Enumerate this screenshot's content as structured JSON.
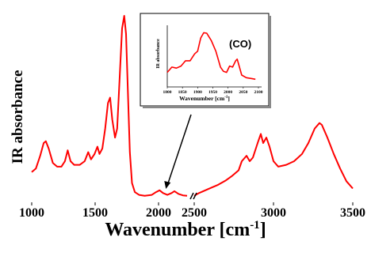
{
  "chart_data": {
    "type": "line",
    "ylabel": "IR absorbance",
    "xlabel": "Wavenumber [cm",
    "xlabel_sup": "-1",
    "xlabel_close": "]",
    "color": "#ff0000",
    "axis_break": true,
    "segments": [
      {
        "xlim": [
          1000,
          2100
        ],
        "ticks": [
          "1000",
          "1500",
          "2000"
        ],
        "points": [
          [
            1000,
            0.14
          ],
          [
            1030,
            0.16
          ],
          [
            1060,
            0.23
          ],
          [
            1085,
            0.3
          ],
          [
            1100,
            0.31
          ],
          [
            1120,
            0.27
          ],
          [
            1150,
            0.19
          ],
          [
            1180,
            0.17
          ],
          [
            1210,
            0.17
          ],
          [
            1235,
            0.2
          ],
          [
            1255,
            0.26
          ],
          [
            1275,
            0.2
          ],
          [
            1300,
            0.18
          ],
          [
            1340,
            0.18
          ],
          [
            1375,
            0.2
          ],
          [
            1400,
            0.25
          ],
          [
            1420,
            0.21
          ],
          [
            1445,
            0.24
          ],
          [
            1465,
            0.28
          ],
          [
            1480,
            0.24
          ],
          [
            1500,
            0.27
          ],
          [
            1520,
            0.38
          ],
          [
            1540,
            0.52
          ],
          [
            1555,
            0.55
          ],
          [
            1570,
            0.43
          ],
          [
            1590,
            0.33
          ],
          [
            1605,
            0.38
          ],
          [
            1625,
            0.7
          ],
          [
            1640,
            0.93
          ],
          [
            1655,
            1.0
          ],
          [
            1668,
            0.9
          ],
          [
            1680,
            0.6
          ],
          [
            1695,
            0.25
          ],
          [
            1710,
            0.08
          ],
          [
            1730,
            0.03
          ],
          [
            1760,
            0.015
          ],
          [
            1800,
            0.01
          ],
          [
            1850,
            0.015
          ],
          [
            1880,
            0.03
          ],
          [
            1905,
            0.04
          ],
          [
            1930,
            0.025
          ],
          [
            1960,
            0.015
          ],
          [
            1990,
            0.025
          ],
          [
            2010,
            0.035
          ],
          [
            2040,
            0.02
          ],
          [
            2070,
            0.012
          ],
          [
            2100,
            0.01
          ]
        ]
      },
      {
        "xlim": [
          2500,
          3500
        ],
        "ticks": [
          "2500",
          "3000",
          "3500"
        ],
        "points": [
          [
            2500,
            0.01
          ],
          [
            2530,
            0.025
          ],
          [
            2570,
            0.04
          ],
          [
            2610,
            0.055
          ],
          [
            2650,
            0.07
          ],
          [
            2700,
            0.095
          ],
          [
            2740,
            0.12
          ],
          [
            2780,
            0.15
          ],
          [
            2800,
            0.2
          ],
          [
            2830,
            0.23
          ],
          [
            2850,
            0.2
          ],
          [
            2870,
            0.22
          ],
          [
            2900,
            0.3
          ],
          [
            2920,
            0.35
          ],
          [
            2935,
            0.3
          ],
          [
            2955,
            0.33
          ],
          [
            2975,
            0.28
          ],
          [
            3000,
            0.2
          ],
          [
            3030,
            0.17
          ],
          [
            3080,
            0.18
          ],
          [
            3130,
            0.2
          ],
          [
            3180,
            0.24
          ],
          [
            3220,
            0.3
          ],
          [
            3260,
            0.38
          ],
          [
            3290,
            0.41
          ],
          [
            3305,
            0.4
          ],
          [
            3340,
            0.33
          ],
          [
            3380,
            0.24
          ],
          [
            3420,
            0.16
          ],
          [
            3460,
            0.09
          ],
          [
            3500,
            0.05
          ]
        ]
      }
    ],
    "annotation": {
      "type": "arrow",
      "target_x": 1950
    },
    "inset": {
      "ylabel": "IR absorbance",
      "xlabel": "Wavenumber [cm",
      "xlabel_sup": "-1",
      "xlabel_close": "]",
      "annotation": "(CO)",
      "xlim": [
        1800,
        2100
      ],
      "ticks": [
        "1800",
        "1850",
        "1900",
        "1950",
        "2000",
        "2050",
        "2100"
      ],
      "points": [
        [
          1800,
          0.2
        ],
        [
          1815,
          0.3
        ],
        [
          1830,
          0.28
        ],
        [
          1845,
          0.32
        ],
        [
          1860,
          0.42
        ],
        [
          1875,
          0.42
        ],
        [
          1890,
          0.55
        ],
        [
          1900,
          0.6
        ],
        [
          1910,
          0.85
        ],
        [
          1920,
          0.95
        ],
        [
          1930,
          0.94
        ],
        [
          1945,
          0.8
        ],
        [
          1960,
          0.6
        ],
        [
          1975,
          0.3
        ],
        [
          1985,
          0.22
        ],
        [
          1995,
          0.2
        ],
        [
          2005,
          0.32
        ],
        [
          2015,
          0.3
        ],
        [
          2025,
          0.42
        ],
        [
          2030,
          0.45
        ],
        [
          2035,
          0.35
        ],
        [
          2045,
          0.15
        ],
        [
          2060,
          0.1
        ],
        [
          2080,
          0.08
        ],
        [
          2090,
          0.07
        ]
      ]
    }
  }
}
